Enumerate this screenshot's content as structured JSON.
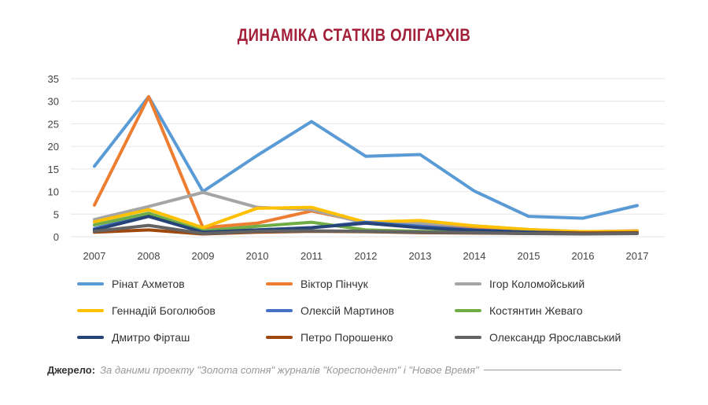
{
  "chart_data": {
    "type": "line",
    "title": "ДИНАМІКА СТАТКІВ ОЛІГАРХІВ",
    "xlabel": "",
    "ylabel": "",
    "x": [
      "2007",
      "2008",
      "2009",
      "2010",
      "2011",
      "2012",
      "2013",
      "2014",
      "2015",
      "2016",
      "2017"
    ],
    "ylim": [
      0,
      35
    ],
    "yticks": [
      "0",
      "5",
      "10",
      "15",
      "20",
      "25",
      "30",
      "35"
    ],
    "grid": true,
    "legend_position": "bottom",
    "series": [
      {
        "name": "Рінат Ахметов",
        "color": "#5b9bd5",
        "values": [
          15.6,
          31,
          10,
          18,
          25.5,
          17.8,
          18.2,
          10.1,
          4.5,
          4.1,
          6.9
        ]
      },
      {
        "name": "Віктор Пінчук",
        "color": "#ed7d31",
        "values": [
          7,
          31,
          2,
          3,
          5.7,
          3.2,
          2.8,
          1.8,
          1.3,
          1.1,
          1.3
        ]
      },
      {
        "name": "Ігор Коломойський",
        "color": "#a5a5a5",
        "values": [
          3.8,
          6.7,
          9.8,
          6.5,
          6,
          3,
          3,
          2.4,
          1.6,
          1.1,
          1.2
        ]
      },
      {
        "name": "Геннадій Боголюбов",
        "color": "#ffc000",
        "values": [
          3.3,
          6,
          2,
          6.3,
          6.5,
          3.2,
          3.6,
          2.4,
          1.6,
          1.1,
          1.2
        ]
      },
      {
        "name": "Олексій Мартинов",
        "color": "#4472c4",
        "values": [
          1.8,
          4.7,
          1.2,
          1.5,
          2,
          3.2,
          2.3,
          1.5,
          1,
          0.8,
          0.8
        ]
      },
      {
        "name": "Костянтин Жеваго",
        "color": "#70ad47",
        "values": [
          2.6,
          5.2,
          1.3,
          2.3,
          3.2,
          1.5,
          1.2,
          1,
          0.8,
          0.7,
          0.8
        ]
      },
      {
        "name": "Дмитро Фірташ",
        "color": "#264478",
        "values": [
          1.5,
          4.5,
          1,
          1.5,
          2,
          3,
          2,
          1.4,
          1,
          0.8,
          0.9
        ]
      },
      {
        "name": "Петро Порошенко",
        "color": "#9e480e",
        "values": [
          1,
          1.5,
          0.6,
          1,
          1.2,
          1.1,
          0.9,
          0.8,
          0.7,
          0.8,
          0.8
        ]
      },
      {
        "name": "Олександр Ярославський",
        "color": "#636363",
        "values": [
          1.2,
          2.5,
          0.7,
          1.2,
          1.3,
          1.2,
          1,
          0.9,
          0.7,
          0.6,
          0.7
        ]
      }
    ]
  },
  "footer": {
    "label": "Джерело:",
    "text": "За даними проекту \"Золота сотня\" журналів \"Кореспондент\" і \"Новое Время\""
  }
}
